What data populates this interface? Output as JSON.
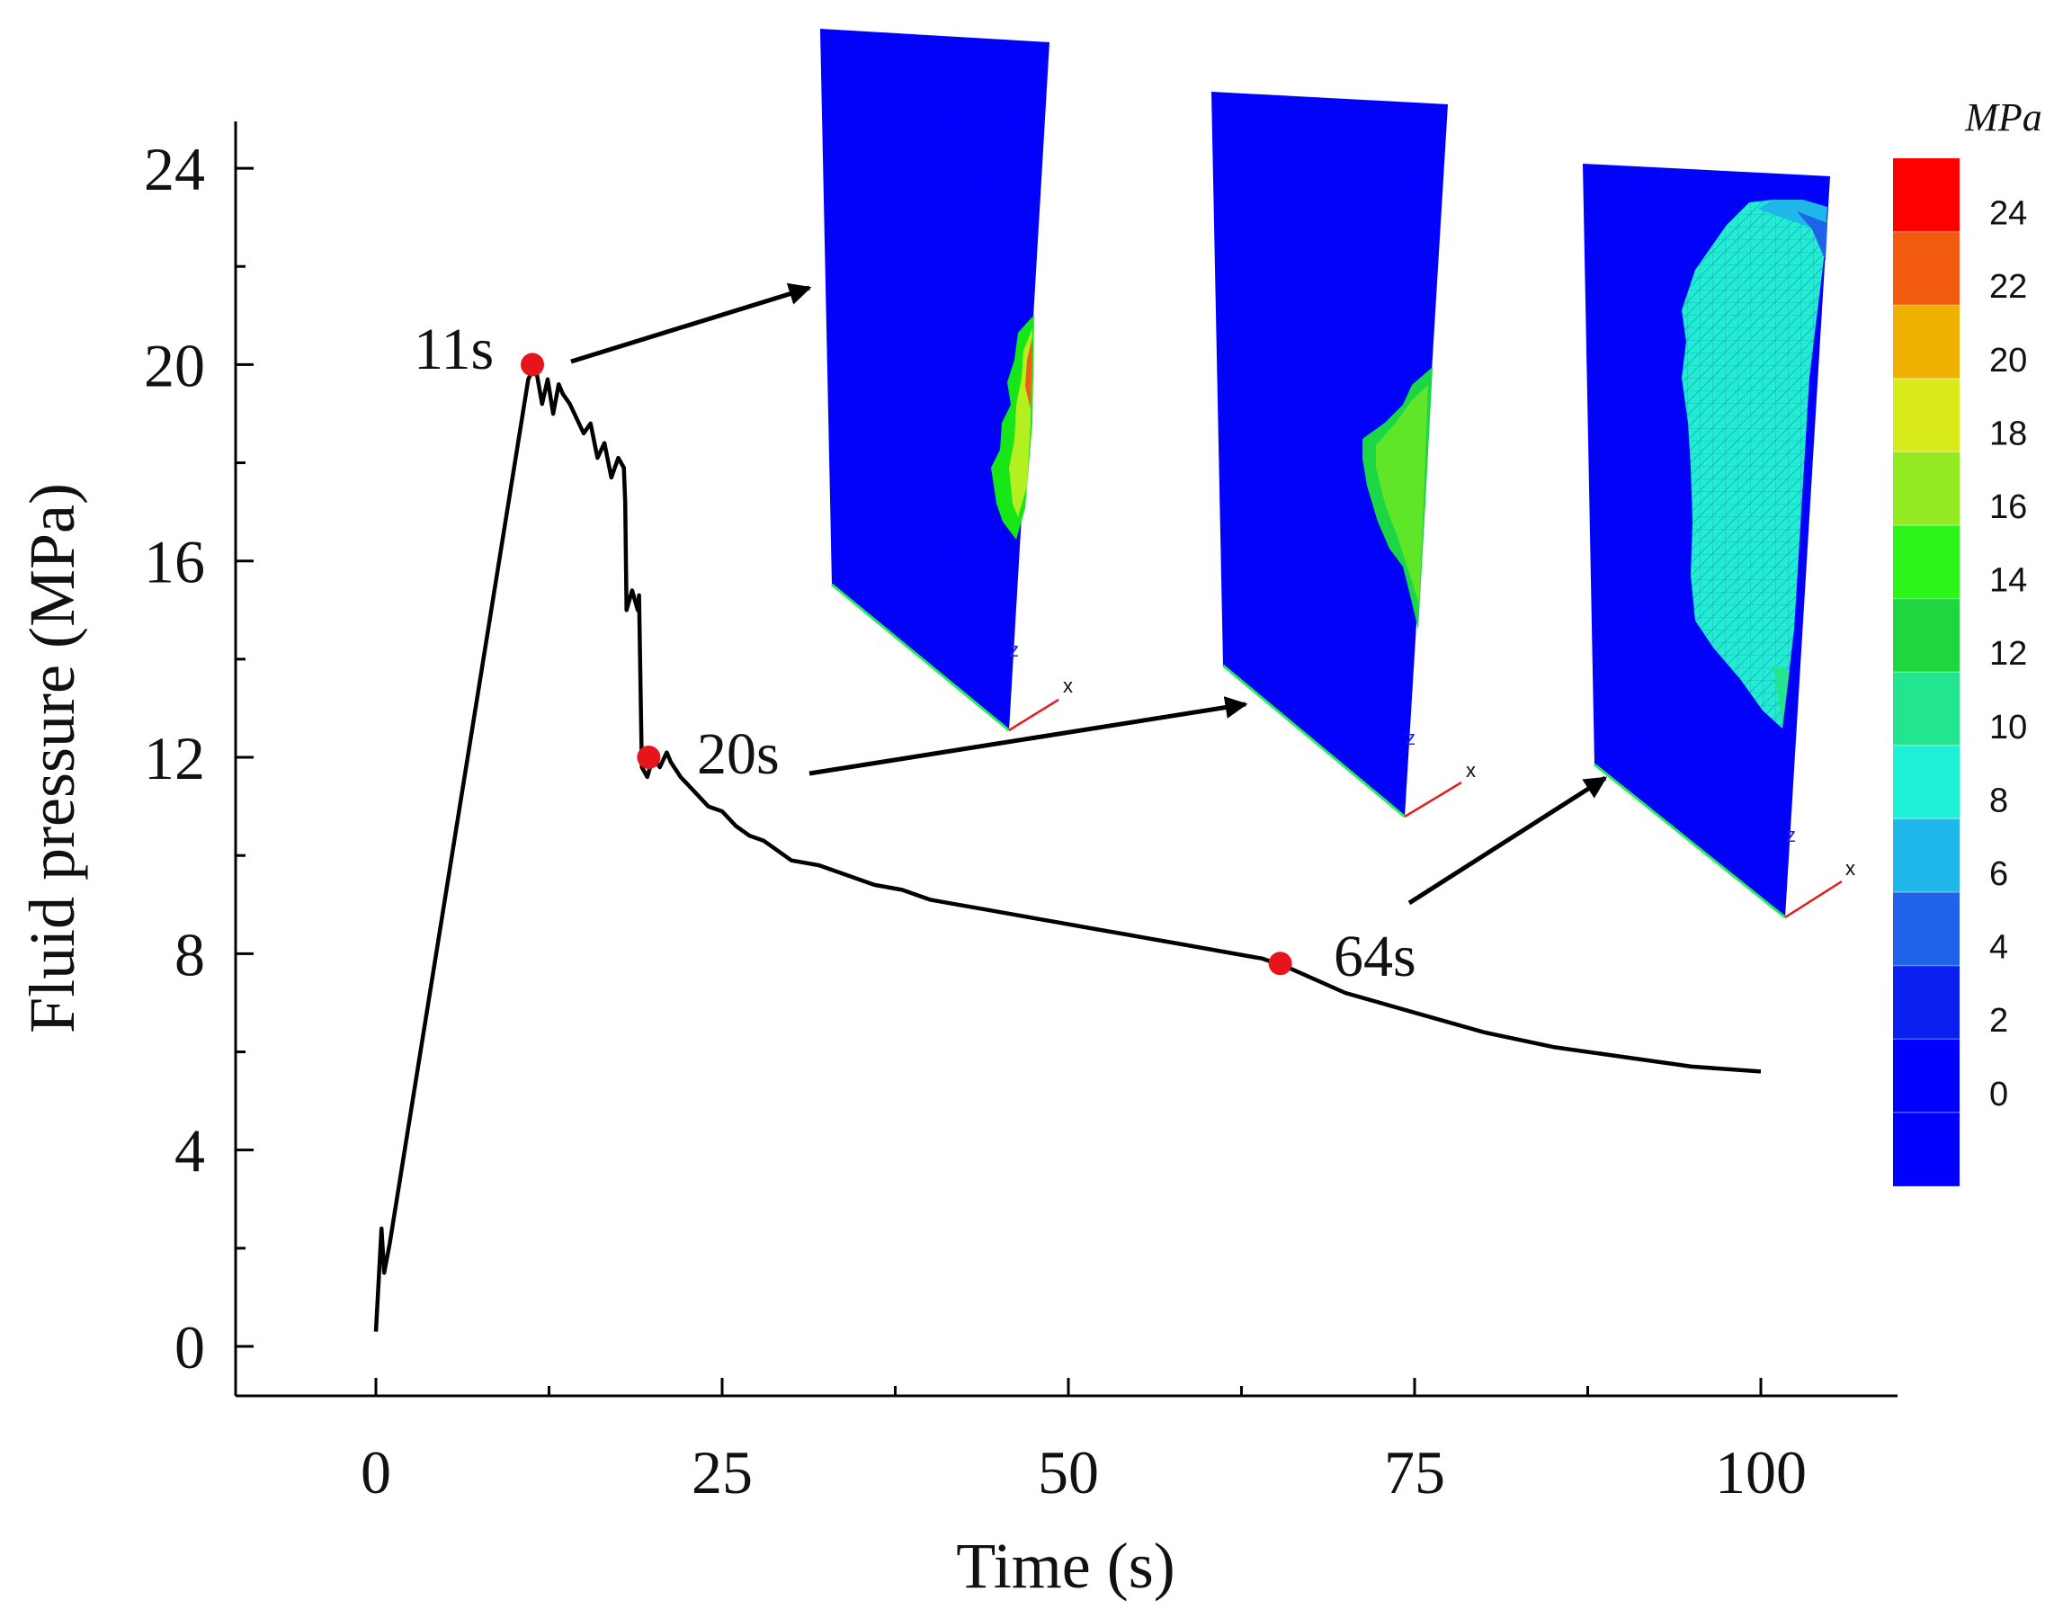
{
  "chart_data": {
    "type": "line",
    "title": "",
    "xlabel": "Time (s)",
    "ylabel": "Fluid pressure (MPa)",
    "xlim": [
      -10,
      110
    ],
    "ylim": [
      -2,
      25
    ],
    "xticks": [
      "0",
      "25",
      "50",
      "75",
      "100"
    ],
    "yticks": [
      "0",
      "4",
      "8",
      "12",
      "16",
      "20",
      "24"
    ],
    "series": [
      {
        "name": "Fluid pressure",
        "color": "#000000",
        "x": [
          0,
          0.4,
          0.6,
          0.8,
          1.0,
          11.0,
          11.5,
          12.0,
          12.4,
          12.8,
          13.2,
          13.5,
          14.0,
          14.5,
          15.0,
          15.5,
          16.0,
          16.5,
          17.0,
          17.5,
          17.9,
          18.0,
          18.1,
          18.5,
          18.9,
          19.0,
          19.2,
          19.6,
          20.0,
          20.5,
          21.0,
          21.3,
          22,
          23,
          24,
          25,
          26,
          27,
          28,
          29,
          30,
          32,
          34,
          36,
          38,
          40,
          42,
          44,
          46,
          48,
          50,
          52,
          54,
          56,
          58,
          60,
          62,
          64,
          66,
          70,
          75,
          80,
          85,
          90,
          95,
          100
        ],
        "y": [
          0.3,
          2.4,
          1.5,
          1.8,
          2.1,
          19.7,
          20.0,
          19.2,
          19.7,
          19.0,
          19.6,
          19.4,
          19.2,
          18.9,
          18.6,
          18.8,
          18.1,
          18.4,
          17.7,
          18.1,
          17.9,
          17.2,
          15.0,
          15.4,
          15.0,
          15.3,
          11.8,
          11.6,
          12.0,
          11.8,
          12.1,
          11.9,
          11.6,
          11.3,
          11.0,
          10.9,
          10.6,
          10.4,
          10.3,
          10.1,
          9.9,
          9.8,
          9.6,
          9.4,
          9.3,
          9.1,
          9.0,
          8.9,
          8.8,
          8.7,
          8.6,
          8.5,
          8.4,
          8.3,
          8.2,
          8.1,
          8.0,
          7.9,
          7.7,
          7.2,
          6.8,
          6.4,
          6.1,
          5.9,
          5.7,
          5.6
        ]
      }
    ],
    "markers": [
      {
        "label": "11s",
        "x": 11.3,
        "y": 20.0,
        "color": "#e8141c"
      },
      {
        "label": "20s",
        "x": 19.7,
        "y": 12.0,
        "color": "#e8141c"
      },
      {
        "label": "64s",
        "x": 65.3,
        "y": 7.8,
        "color": "#e8141c"
      }
    ],
    "colorbar": {
      "unit": "MPa",
      "labels": [
        "24",
        "22",
        "20",
        "18",
        "16",
        "14",
        "12",
        "10",
        "8",
        "6",
        "4",
        "2",
        "0"
      ],
      "colors": [
        "#ff0000",
        "#f25a10",
        "#f0b000",
        "#d9ea1a",
        "#94ea20",
        "#2cf51a",
        "#1fd63e",
        "#22e58e",
        "#1ff0d8",
        "#1fb6ea",
        "#1e63e8",
        "#0a20f0",
        "#0000ff",
        "#0000ff"
      ]
    },
    "inset_axis_labels": {
      "z": "z",
      "x": "x"
    }
  }
}
